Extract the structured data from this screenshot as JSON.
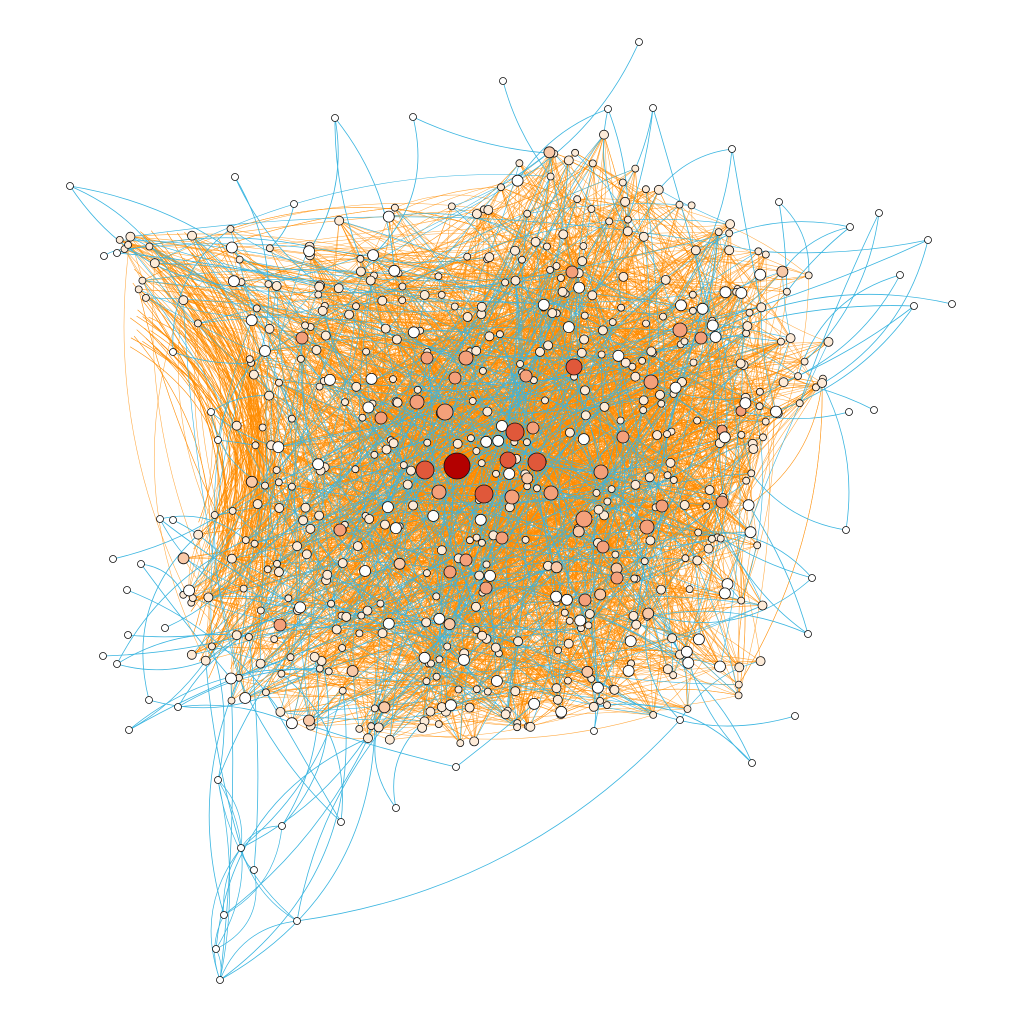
{
  "graph": {
    "colors": {
      "background": "#ffffff",
      "edge_dense": "#ff8c00",
      "edge_sparse": "#3ab5e0",
      "node_outline": "#111111",
      "node_low": "#fdebd8",
      "node_mid": "#f4a07a",
      "node_high": "#e0583a",
      "node_hub": "#b30000"
    }
  }
}
